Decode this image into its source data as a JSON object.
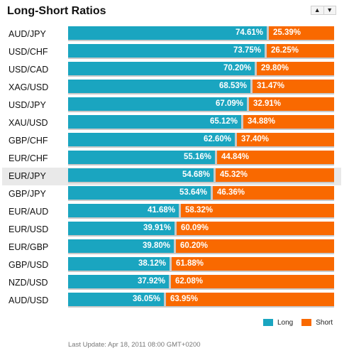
{
  "title": "Long-Short Ratios",
  "sort_controls": {
    "up_icon": "triangle-up-icon",
    "down_icon": "triangle-down-icon",
    "up": "▲",
    "down": "▼"
  },
  "colors": {
    "long": "#1aa5c0",
    "short": "#f96900",
    "track": "#c9c9c9",
    "highlight_row": "#e9e9e9"
  },
  "highlighted_pair": "EUR/JPY",
  "chart_data": {
    "type": "bar",
    "stacked": true,
    "orientation": "horizontal",
    "categories": [
      "AUD/JPY",
      "USD/CHF",
      "USD/CAD",
      "XAG/USD",
      "USD/JPY",
      "XAU/USD",
      "GBP/CHF",
      "EUR/CHF",
      "EUR/JPY",
      "GBP/JPY",
      "EUR/AUD",
      "EUR/USD",
      "EUR/GBP",
      "GBP/USD",
      "NZD/USD",
      "AUD/USD"
    ],
    "series": [
      {
        "name": "Long",
        "values": [
          74.61,
          73.75,
          70.2,
          68.53,
          67.09,
          65.12,
          62.6,
          55.16,
          54.68,
          53.64,
          41.68,
          39.91,
          39.8,
          38.12,
          37.92,
          36.05
        ]
      },
      {
        "name": "Short",
        "values": [
          25.39,
          26.25,
          29.8,
          31.47,
          32.91,
          34.88,
          37.4,
          44.84,
          45.32,
          46.36,
          58.32,
          60.09,
          60.2,
          61.88,
          62.08,
          63.95
        ]
      }
    ],
    "value_labels": {
      "long": [
        "74.61%",
        "73.75%",
        "70.20%",
        "68.53%",
        "67.09%",
        "65.12%",
        "62.60%",
        "55.16%",
        "54.68%",
        "53.64%",
        "41.68%",
        "39.91%",
        "39.80%",
        "38.12%",
        "37.92%",
        "36.05%"
      ],
      "short": [
        "25.39%",
        "26.25%",
        "29.80%",
        "31.47%",
        "32.91%",
        "34.88%",
        "37.40%",
        "44.84%",
        "45.32%",
        "46.36%",
        "58.32%",
        "60.09%",
        "60.20%",
        "61.88%",
        "62.08%",
        "63.95%"
      ]
    },
    "xlim": [
      0,
      100
    ],
    "legend_position": "bottom-right"
  },
  "legend": {
    "long_label": "Long",
    "short_label": "Short"
  },
  "footer": {
    "last_update": "Last Update: Apr 18, 2011 08:00 GMT+0200"
  }
}
